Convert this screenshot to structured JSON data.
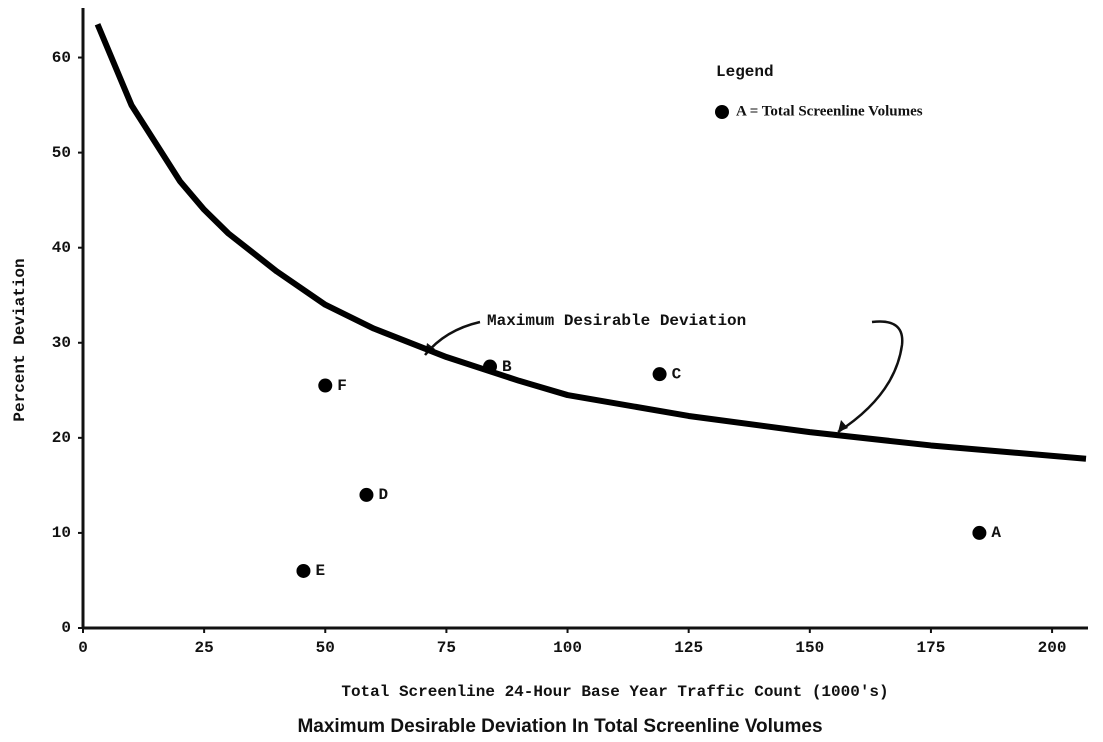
{
  "chart_data": {
    "type": "scatter",
    "title": "Maximum Desirable Deviation In Total Screenline Volumes",
    "x_label": "Total Screenline 24-Hour  Base Year Traffic Count (1000's)",
    "y_label": "Percent Deviation",
    "xlim": [
      0,
      207
    ],
    "ylim": [
      0,
      65
    ],
    "xticks": [
      0,
      25,
      50,
      75,
      100,
      125,
      150,
      175,
      200
    ],
    "yticks": [
      0,
      10,
      20,
      30,
      40,
      50,
      60
    ],
    "color": "#000000",
    "legend_title": "Legend",
    "curve": {
      "label": "Maximum Desirable Deviation",
      "x": [
        3,
        10,
        20,
        25,
        30,
        40,
        50,
        60,
        75,
        90,
        100,
        125,
        150,
        175,
        207
      ],
      "values": [
        63.5,
        55,
        47,
        44,
        41.5,
        37.5,
        34,
        31.5,
        28.5,
        26,
        24.5,
        22.3,
        20.6,
        19.2,
        17.8
      ]
    },
    "series": [
      {
        "name": "A = Total Screenline Volumes",
        "labels": [
          "A",
          "B",
          "C",
          "D",
          "E",
          "F"
        ],
        "x": [
          185,
          84,
          119,
          58.5,
          45.5,
          50
        ],
        "values": [
          10,
          27.5,
          26.7,
          14,
          6,
          25.5
        ]
      }
    ]
  }
}
